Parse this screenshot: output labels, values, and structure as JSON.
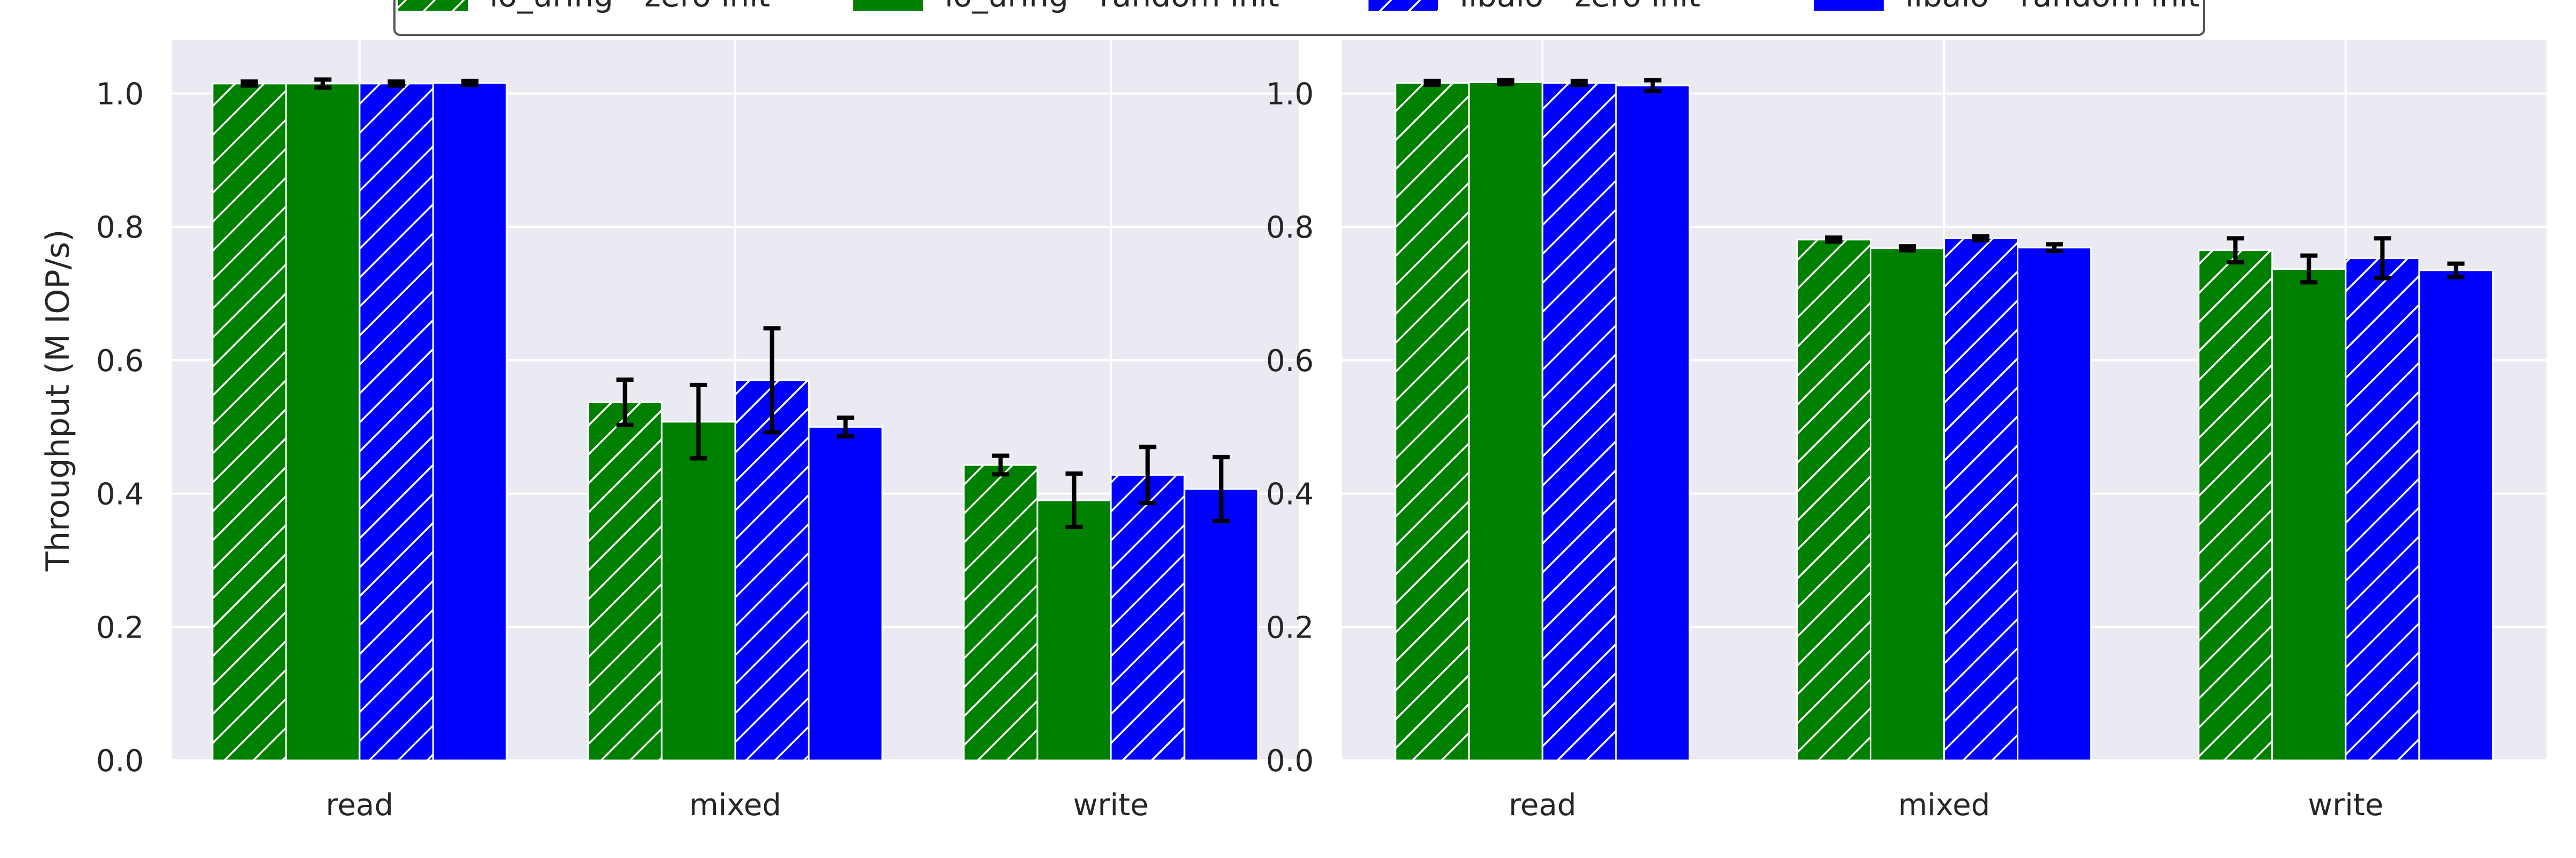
{
  "chart_data": [
    {
      "type": "bar",
      "ylabel": "Throughput (M IOP/s)",
      "ylim": [
        0,
        1.08
      ],
      "yticks": [
        0.0,
        0.2,
        0.4,
        0.6,
        0.8,
        1.0
      ],
      "ytick_labels": [
        "0.0",
        "0.2",
        "0.4",
        "0.6",
        "0.8",
        "1.0"
      ],
      "grid": true,
      "categories": [
        "read",
        "mixed",
        "write"
      ],
      "series": [
        {
          "name": "io_uring - zero init",
          "values": [
            1.015,
            0.537,
            0.443
          ],
          "errors": [
            0.003,
            0.034,
            0.014
          ]
        },
        {
          "name": "io_uring - random init",
          "values": [
            1.015,
            0.508,
            0.39
          ],
          "errors": [
            0.006,
            0.055,
            0.04
          ]
        },
        {
          "name": "libaio - zero init",
          "values": [
            1.015,
            0.57,
            0.428
          ],
          "errors": [
            0.003,
            0.078,
            0.042
          ]
        },
        {
          "name": "libaio - random init",
          "values": [
            1.016,
            0.5,
            0.407
          ],
          "errors": [
            0.003,
            0.014,
            0.048
          ]
        }
      ]
    },
    {
      "type": "bar",
      "ylabel": "",
      "ylim": [
        0,
        1.08
      ],
      "yticks": [
        0.0,
        0.2,
        0.4,
        0.6,
        0.8,
        1.0
      ],
      "ytick_labels": [
        "0.0",
        "0.2",
        "0.4",
        "0.6",
        "0.8",
        "1.0"
      ],
      "grid": true,
      "categories": [
        "read",
        "mixed",
        "write"
      ],
      "series": [
        {
          "name": "io_uring - zero init",
          "values": [
            1.016,
            0.781,
            0.765
          ],
          "errors": [
            0.003,
            0.003,
            0.018
          ]
        },
        {
          "name": "io_uring - random init",
          "values": [
            1.017,
            0.768,
            0.737
          ],
          "errors": [
            0.003,
            0.003,
            0.02
          ]
        },
        {
          "name": "libaio - zero init",
          "values": [
            1.016,
            0.783,
            0.753
          ],
          "errors": [
            0.003,
            0.003,
            0.03
          ]
        },
        {
          "name": "libaio - random init",
          "values": [
            1.012,
            0.769,
            0.735
          ],
          "errors": [
            0.008,
            0.005,
            0.01
          ]
        }
      ]
    }
  ],
  "legend": {
    "placement": "top-center",
    "entries": [
      {
        "label": "io_uring - zero init",
        "color": "#008000",
        "hatch": true
      },
      {
        "label": "io_uring - random init",
        "color": "#008000",
        "hatch": false
      },
      {
        "label": "libaio - zero init",
        "color": "#0000ff",
        "hatch": true
      },
      {
        "label": "libaio - random init",
        "color": "#0000ff",
        "hatch": false
      }
    ]
  },
  "colors": {
    "background": "#ffffff",
    "axes_face": "#eaeaf2",
    "grid": "#ffffff",
    "error_bar": "#000000",
    "hatch": "#ffffff"
  }
}
